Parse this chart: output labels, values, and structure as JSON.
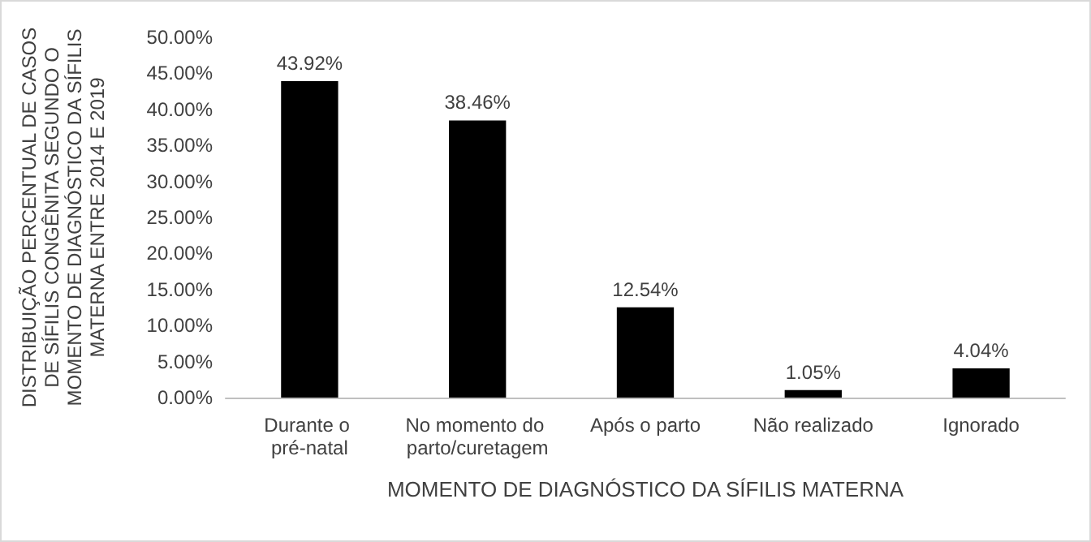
{
  "chart_data": {
    "type": "bar",
    "xlabel": "MOMENTO DE DIAGNÓSTICO DA SÍFILIS MATERNA",
    "ylabel": "DISTRIBUIÇÃO PERCENTUAL DE CASOS DE SÍFILIS CONGÊNITA SEGUNDO O MOMENTO DE DIAGNÓSTICO DA SÍFILIS MATERNA ENTRE 2014 E 2019",
    "categories": [
      "Durante o pré-natal",
      "No momento do parto/curetagem",
      "Após o parto",
      "Não realizado",
      "Ignorado"
    ],
    "values": [
      43.92,
      38.46,
      12.54,
      1.05,
      4.04
    ],
    "value_labels": [
      "43.92%",
      "38.46%",
      "12.54%",
      "1.05%",
      "4.04%"
    ],
    "color": "#000000",
    "ylim": [
      0,
      50
    ],
    "yticks": [
      {
        "value": 0,
        "label": "0.00%"
      },
      {
        "value": 5,
        "label": "5.00%"
      },
      {
        "value": 10,
        "label": "10.00%"
      },
      {
        "value": 15,
        "label": "15.00%"
      },
      {
        "value": 20,
        "label": "20.00%"
      },
      {
        "value": 25,
        "label": "25.00%"
      },
      {
        "value": 30,
        "label": "30.00%"
      },
      {
        "value": 35,
        "label": "35.00%"
      },
      {
        "value": 40,
        "label": "40.00%"
      },
      {
        "value": 45,
        "label": "45.00%"
      },
      {
        "value": 50,
        "label": "50.00%"
      }
    ],
    "grid": false
  }
}
